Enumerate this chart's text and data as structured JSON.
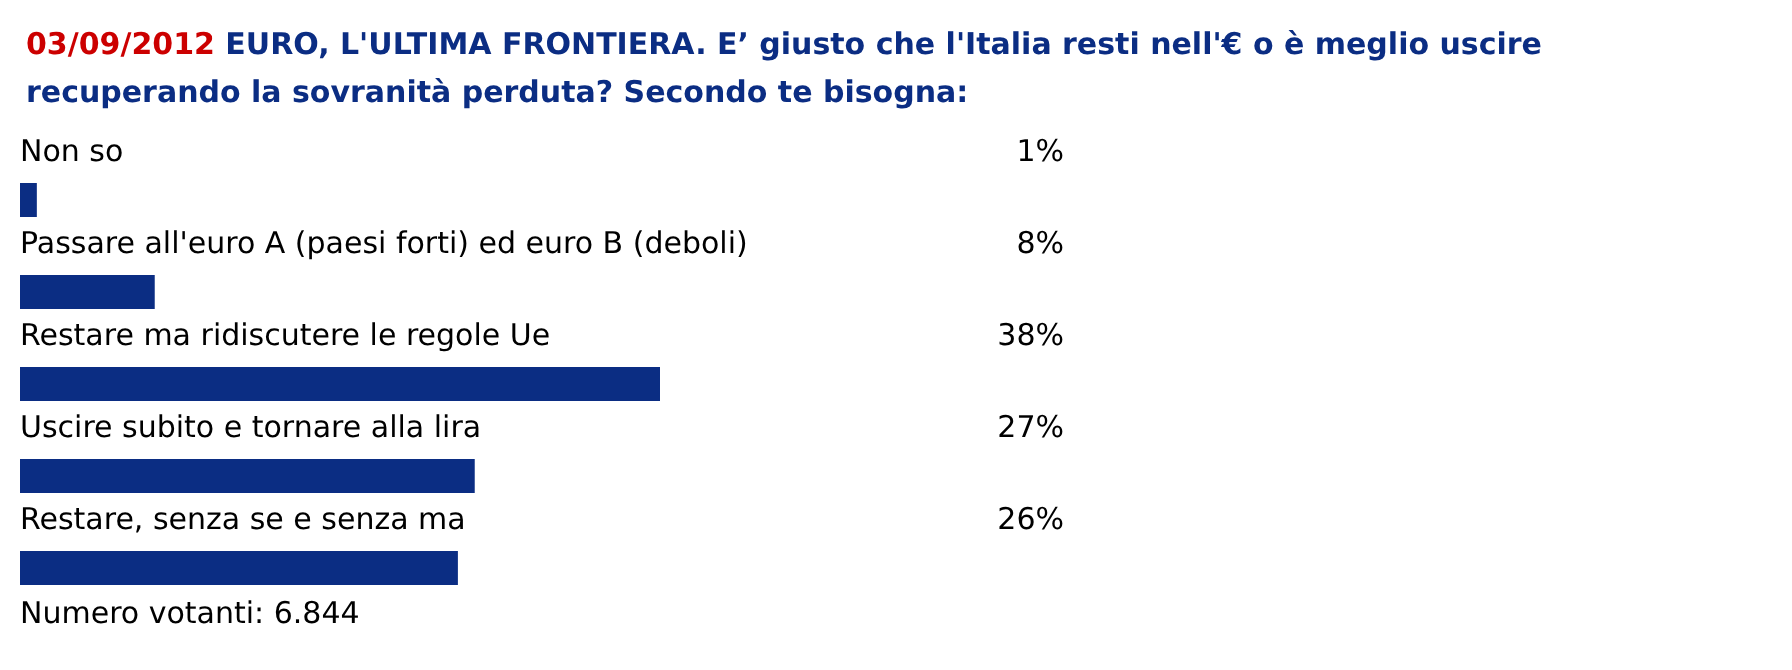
{
  "chart_data": {
    "type": "bar",
    "orientation": "horizontal",
    "title": "03/09/2012 EURO, L'ULTIMA FRONTIERA. E’ giusto che l'Italia resti nell'€ o è meglio uscire recuperando la sovranità perduta? Secondo te bisogna:",
    "categories": [
      "Non so",
      "Passare all'euro A (paesi forti) ed euro B (deboli)",
      "Restare ma ridiscutere le regole Ue",
      "Uscire subito e tornare alla lira",
      "Restare, senza se e senza ma"
    ],
    "values": [
      1,
      8,
      38,
      27,
      26
    ],
    "value_labels": [
      "1%",
      "8%",
      "38%",
      "27%",
      "26%"
    ],
    "color": "#0b2d83",
    "annotations": [
      "Numero votanti: 6.844"
    ]
  }
}
